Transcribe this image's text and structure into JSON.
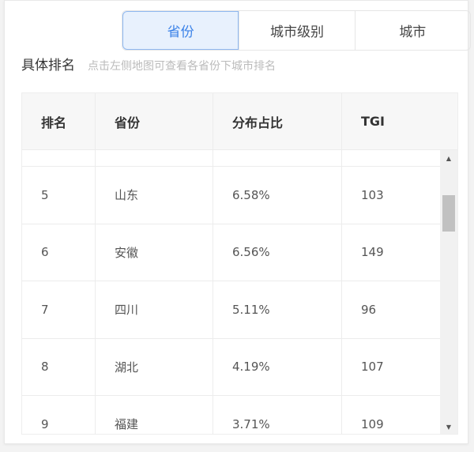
{
  "tabs": [
    {
      "label": "省份",
      "active": true
    },
    {
      "label": "城市级别"
    },
    {
      "label": "城市"
    }
  ],
  "section": {
    "title": "具体排名",
    "hint": "点击左侧地图可查看各省份下城市排名"
  },
  "table": {
    "headers": [
      "排名",
      "省份",
      "分布占比",
      "TGI"
    ],
    "rows": [
      [
        "5",
        "山东",
        "6.58%",
        "103"
      ],
      [
        "6",
        "安徽",
        "6.56%",
        "149"
      ],
      [
        "7",
        "四川",
        "5.11%",
        "96"
      ],
      [
        "8",
        "湖北",
        "4.19%",
        "107"
      ],
      [
        "9",
        "福建",
        "3.71%",
        "109"
      ]
    ]
  },
  "scrollbar": {
    "up_icon": "▲",
    "down_icon": "▼"
  }
}
